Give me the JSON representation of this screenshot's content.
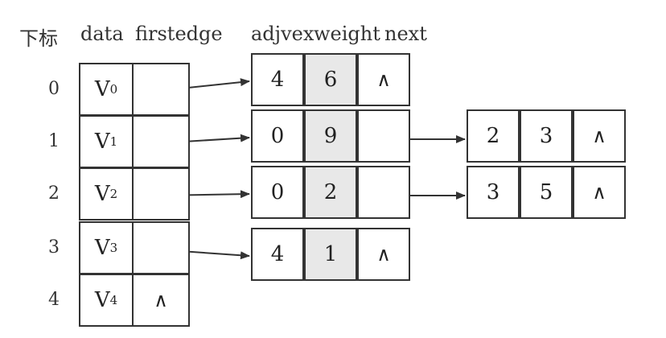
{
  "headers": {
    "index": "下标",
    "data": "data",
    "firstedge": "firstedge",
    "adjvex": "adjvex",
    "weight": "weight",
    "next": "next"
  },
  "null_symbol": "∧",
  "vertices": [
    {
      "index": "0",
      "name": "V",
      "sub": "0",
      "firstedge_null": false
    },
    {
      "index": "1",
      "name": "V",
      "sub": "1",
      "firstedge_null": false
    },
    {
      "index": "2",
      "name": "V",
      "sub": "2",
      "firstedge_null": false
    },
    {
      "index": "3",
      "name": "V",
      "sub": "3",
      "firstedge_null": false
    },
    {
      "index": "4",
      "name": "V",
      "sub": "4",
      "firstedge_null": true
    }
  ],
  "edge_lists": [
    [
      {
        "adjvex": "4",
        "weight": "6"
      }
    ],
    [
      {
        "adjvex": "0",
        "weight": "9"
      },
      {
        "adjvex": "2",
        "weight": "3"
      }
    ],
    [
      {
        "adjvex": "0",
        "weight": "2"
      },
      {
        "adjvex": "3",
        "weight": "5"
      }
    ],
    [
      {
        "adjvex": "4",
        "weight": "1"
      }
    ],
    []
  ]
}
